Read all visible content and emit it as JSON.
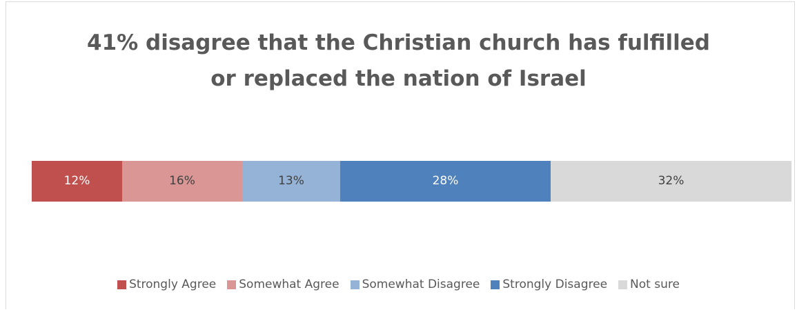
{
  "chart_data": {
    "type": "bar",
    "orientation": "horizontal",
    "stacked": true,
    "title_lines": [
      "41% disagree that the Christian church has fulfilled",
      "or replaced the nation of Israel"
    ],
    "xlabel": "",
    "ylabel": "",
    "grid": false,
    "legend_position": "bottom",
    "series": [
      {
        "name": "Strongly Agree",
        "value": 12,
        "label": "12%",
        "color": "#c0504d",
        "label_color": "#ffffff"
      },
      {
        "name": "Somewhat Agree",
        "value": 16,
        "label": "16%",
        "color": "#d99694",
        "label_color": "#404040"
      },
      {
        "name": "Somewhat Disagree",
        "value": 13,
        "label": "13%",
        "color": "#95b3d7",
        "label_color": "#404040"
      },
      {
        "name": "Strongly Disagree",
        "value": 28,
        "label": "28%",
        "color": "#4f81bd",
        "label_color": "#ffffff"
      },
      {
        "name": "Not sure",
        "value": 32,
        "label": "32%",
        "color": "#d9d9d9",
        "label_color": "#404040"
      }
    ]
  }
}
